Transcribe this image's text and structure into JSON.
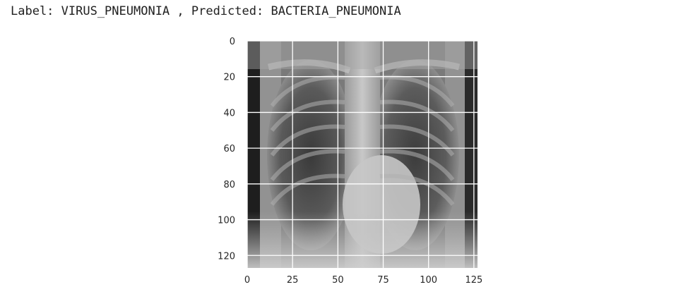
{
  "cell_output": {
    "caption": "Label: VIRUS_PNEUMONIA , Predicted: BACTERIA_PNEUMONIA"
  },
  "chart_data": {
    "type": "image",
    "image_content": "grayscale chest x-ray",
    "grid": true,
    "xlim": [
      0,
      127
    ],
    "ylim": [
      127,
      0
    ],
    "x_ticks": [
      "0",
      "25",
      "50",
      "75",
      "100",
      "125"
    ],
    "y_ticks": [
      "0",
      "20",
      "40",
      "60",
      "80",
      "100",
      "120"
    ]
  },
  "colors": {
    "grid": "#ffffff",
    "tick_text": "#262626",
    "output_text": "#212121"
  }
}
